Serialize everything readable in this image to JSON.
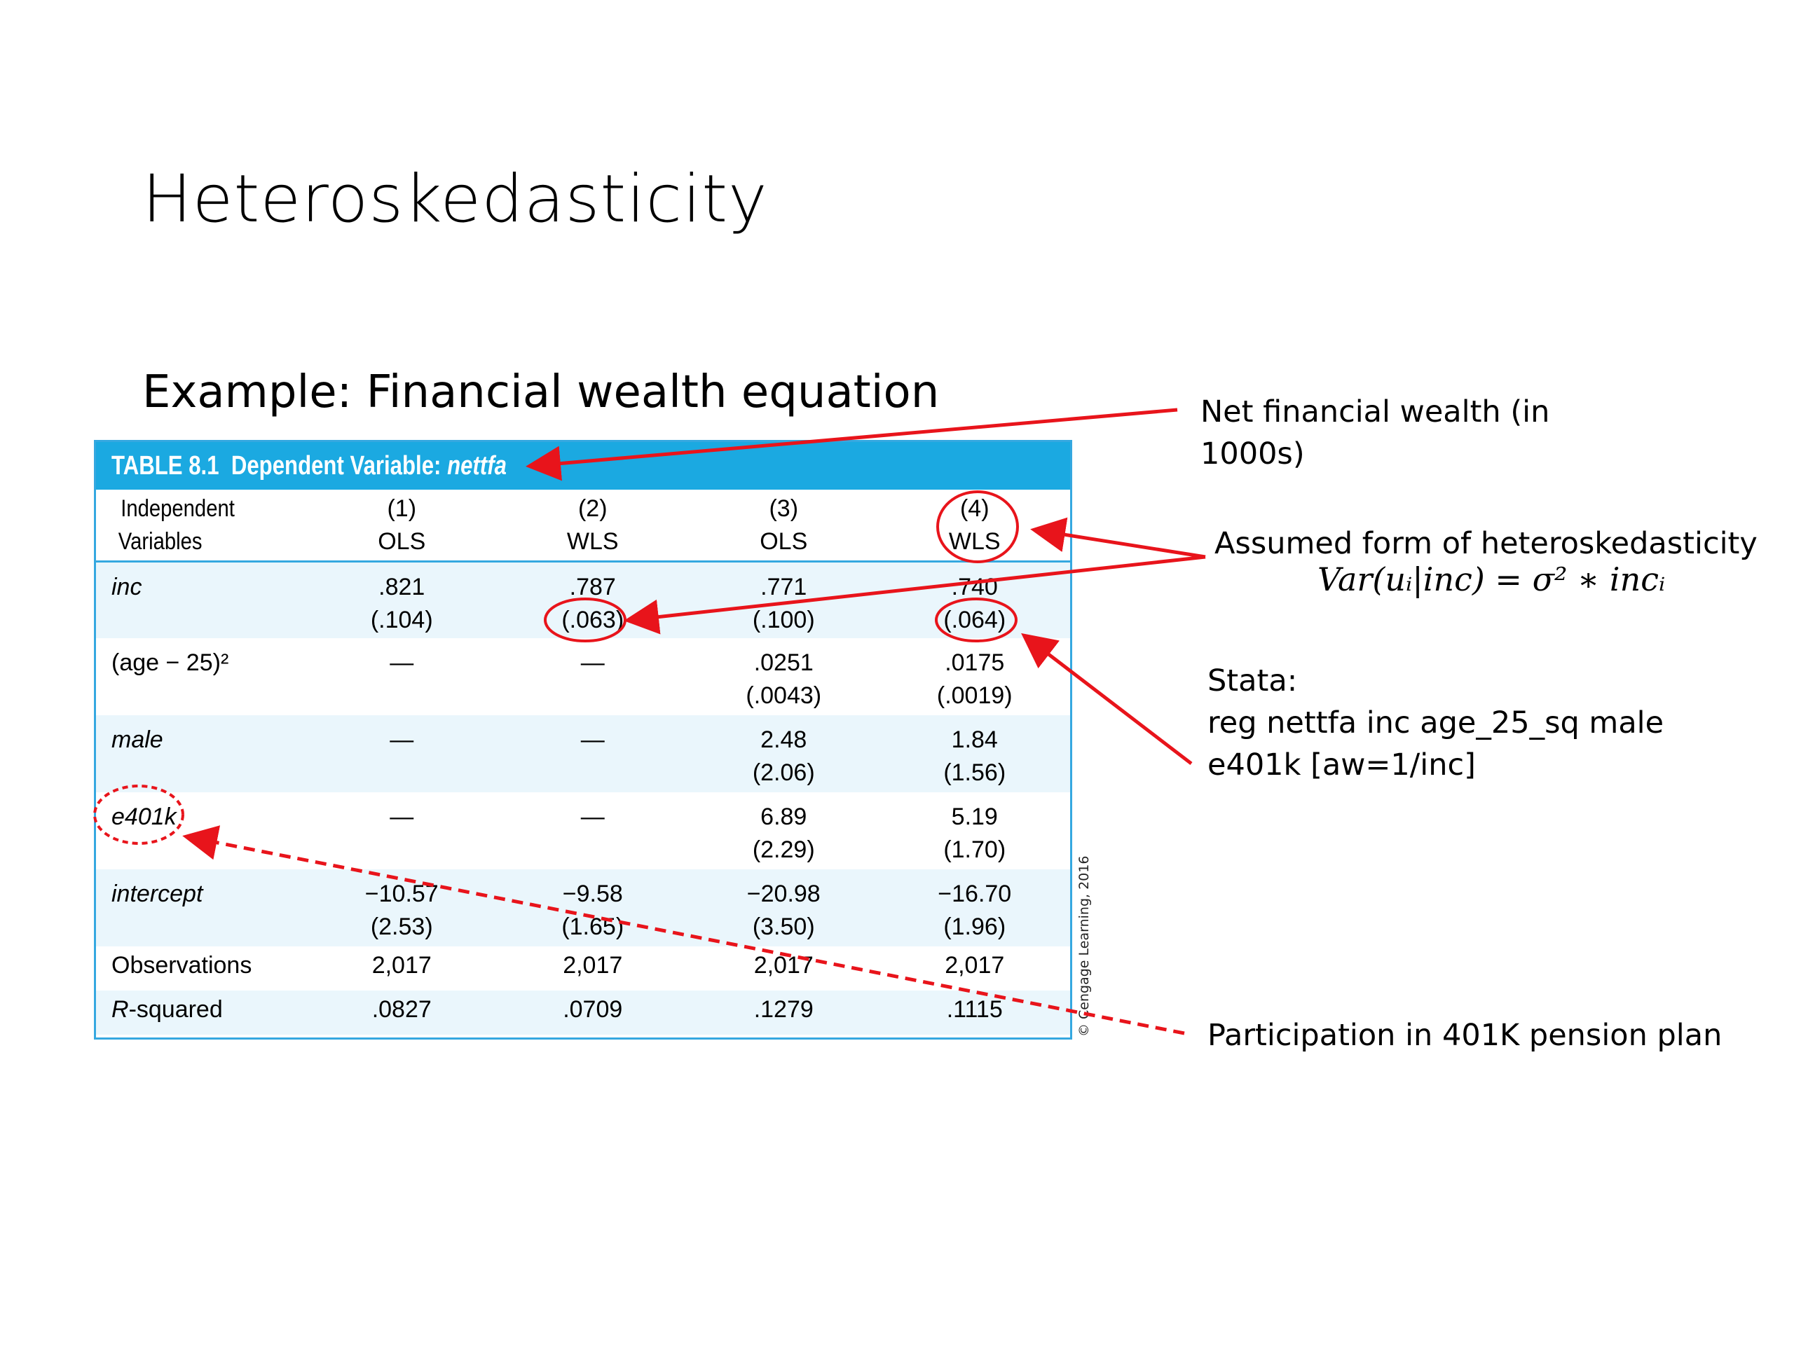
{
  "slide": {
    "title": "Heteroskedasticity",
    "subtitle": "Example: Financial wealth equation"
  },
  "table": {
    "label": "TABLE 8.1",
    "dv_prefix": "Dependent Variable:",
    "dv_name": "nettfa",
    "header": {
      "var_line1": "Independent",
      "var_line2": "Variables",
      "cols": [
        {
          "num": "(1)",
          "method": "OLS"
        },
        {
          "num": "(2)",
          "method": "WLS"
        },
        {
          "num": "(3)",
          "method": "OLS"
        },
        {
          "num": "(4)",
          "method": "WLS"
        }
      ]
    },
    "rows": [
      {
        "var": "inc",
        "coef": [
          ".821",
          ".787",
          ".771",
          ".740"
        ],
        "se": [
          "(.104)",
          "(.063)",
          "(.100)",
          "(.064)"
        ]
      },
      {
        "var": "(age − 25)²",
        "coef": [
          "—",
          "—",
          ".0251",
          ".0175"
        ],
        "se": [
          "",
          "",
          "(.0043)",
          "(.0019)"
        ]
      },
      {
        "var": "male",
        "coef": [
          "—",
          "—",
          "2.48",
          "1.84"
        ],
        "se": [
          "",
          "",
          "(2.06)",
          "(1.56)"
        ]
      },
      {
        "var": "e401k",
        "coef": [
          "—",
          "—",
          "6.89",
          "5.19"
        ],
        "se": [
          "",
          "",
          "(2.29)",
          "(1.70)"
        ]
      },
      {
        "var": "intercept",
        "coef": [
          "−10.57",
          "−9.58",
          "−20.98",
          "−16.70"
        ],
        "se": [
          "(2.53)",
          "(1.65)",
          "(3.50)",
          "(1.96)"
        ]
      }
    ],
    "observations": {
      "label": "Observations",
      "values": [
        "2,017",
        "2,017",
        "2,017",
        "2,017"
      ]
    },
    "rsquared": {
      "label_r": "R",
      "label_rest": "-squared",
      "values": [
        ".0827",
        ".0709",
        ".1279",
        ".1115"
      ]
    },
    "copyright": "© Cengage Learning, 2016"
  },
  "annotations": {
    "net_wealth_line1": "Net financial wealth (in",
    "net_wealth_line2": "1000s)",
    "assumed_form": "Assumed form of heteroskedasticity",
    "formula": "Var(uᵢ|inc) = σ² ∗ incᵢ",
    "stata_line1": "Stata:",
    "stata_line2": "reg nettfa inc age_25_sq male",
    "stata_line3": "e401k [aw=1/inc]",
    "participation": "Participation in 401K pension plan"
  },
  "colors": {
    "header_blue": "#1ba9e1",
    "band_blue": "#eaf6fc",
    "annotation_red": "#e8141b"
  }
}
